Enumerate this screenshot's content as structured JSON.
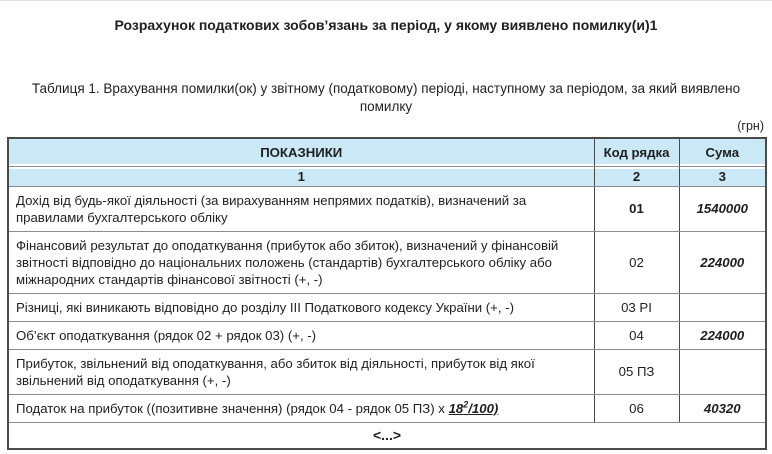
{
  "page": {
    "title": "Розрахунок податкових зобов’язань за період, у якому виявлено помилку(и)1",
    "subtitle": "Таблиця 1. Врахування помилки(ок) у звітному (податковому) періоді, наступному за періодом, за який виявлено помилку",
    "currency_note": "(грн)"
  },
  "table": {
    "headers": [
      "ПОКАЗНИКИ",
      "Код рядка",
      "Сума"
    ],
    "column_numbers": [
      "1",
      "2",
      "3"
    ],
    "rows": [
      {
        "indicator": "Дохід від будь-якої діяльності (за вирахуванням непрямих податків), визначений за правилами бухгалтерського обліку",
        "code": "01",
        "code_bold": true,
        "sum": "1540000"
      },
      {
        "indicator": "Фінансовий результат до оподаткування (прибуток або збиток), визначений у фінансовій звітності відповідно до національних положень (стандартів) бухгалтерського обліку або міжнародних стандартів фінансової звітності (+, -)",
        "code": "02",
        "code_bold": false,
        "sum": "224000"
      },
      {
        "indicator": "Різниці, які виникають відповідно до розділу III Податкового кодексу України (+, -)",
        "code": "03 РІ",
        "code_bold": false,
        "sum": ""
      },
      {
        "indicator": "Об’єкт оподаткування (рядок 02 + рядок 03) (+, -)",
        "code": "04",
        "code_bold": false,
        "sum": "224000"
      },
      {
        "indicator": "Прибуток, звільнений від оподаткування, або збиток від діяльності, прибуток від якої звільнений від оподаткування (+, -)",
        "code": "05 ПЗ",
        "code_bold": false,
        "sum": ""
      },
      {
        "indicator": "Податок на прибуток ((позитивне значення) (рядок 04 - рядок 05 ПЗ) х ",
        "formula": {
          "base": "18",
          "sup": "2",
          "rest": "/100)"
        },
        "code": "06",
        "code_bold": false,
        "sum": "40320"
      }
    ],
    "footer": "<...>"
  },
  "colors": {
    "header_blue": "#cbe8f7",
    "border_dark": "#4a4a4a",
    "border_light": "#8c8c8c",
    "text": "#1f1f1f"
  }
}
